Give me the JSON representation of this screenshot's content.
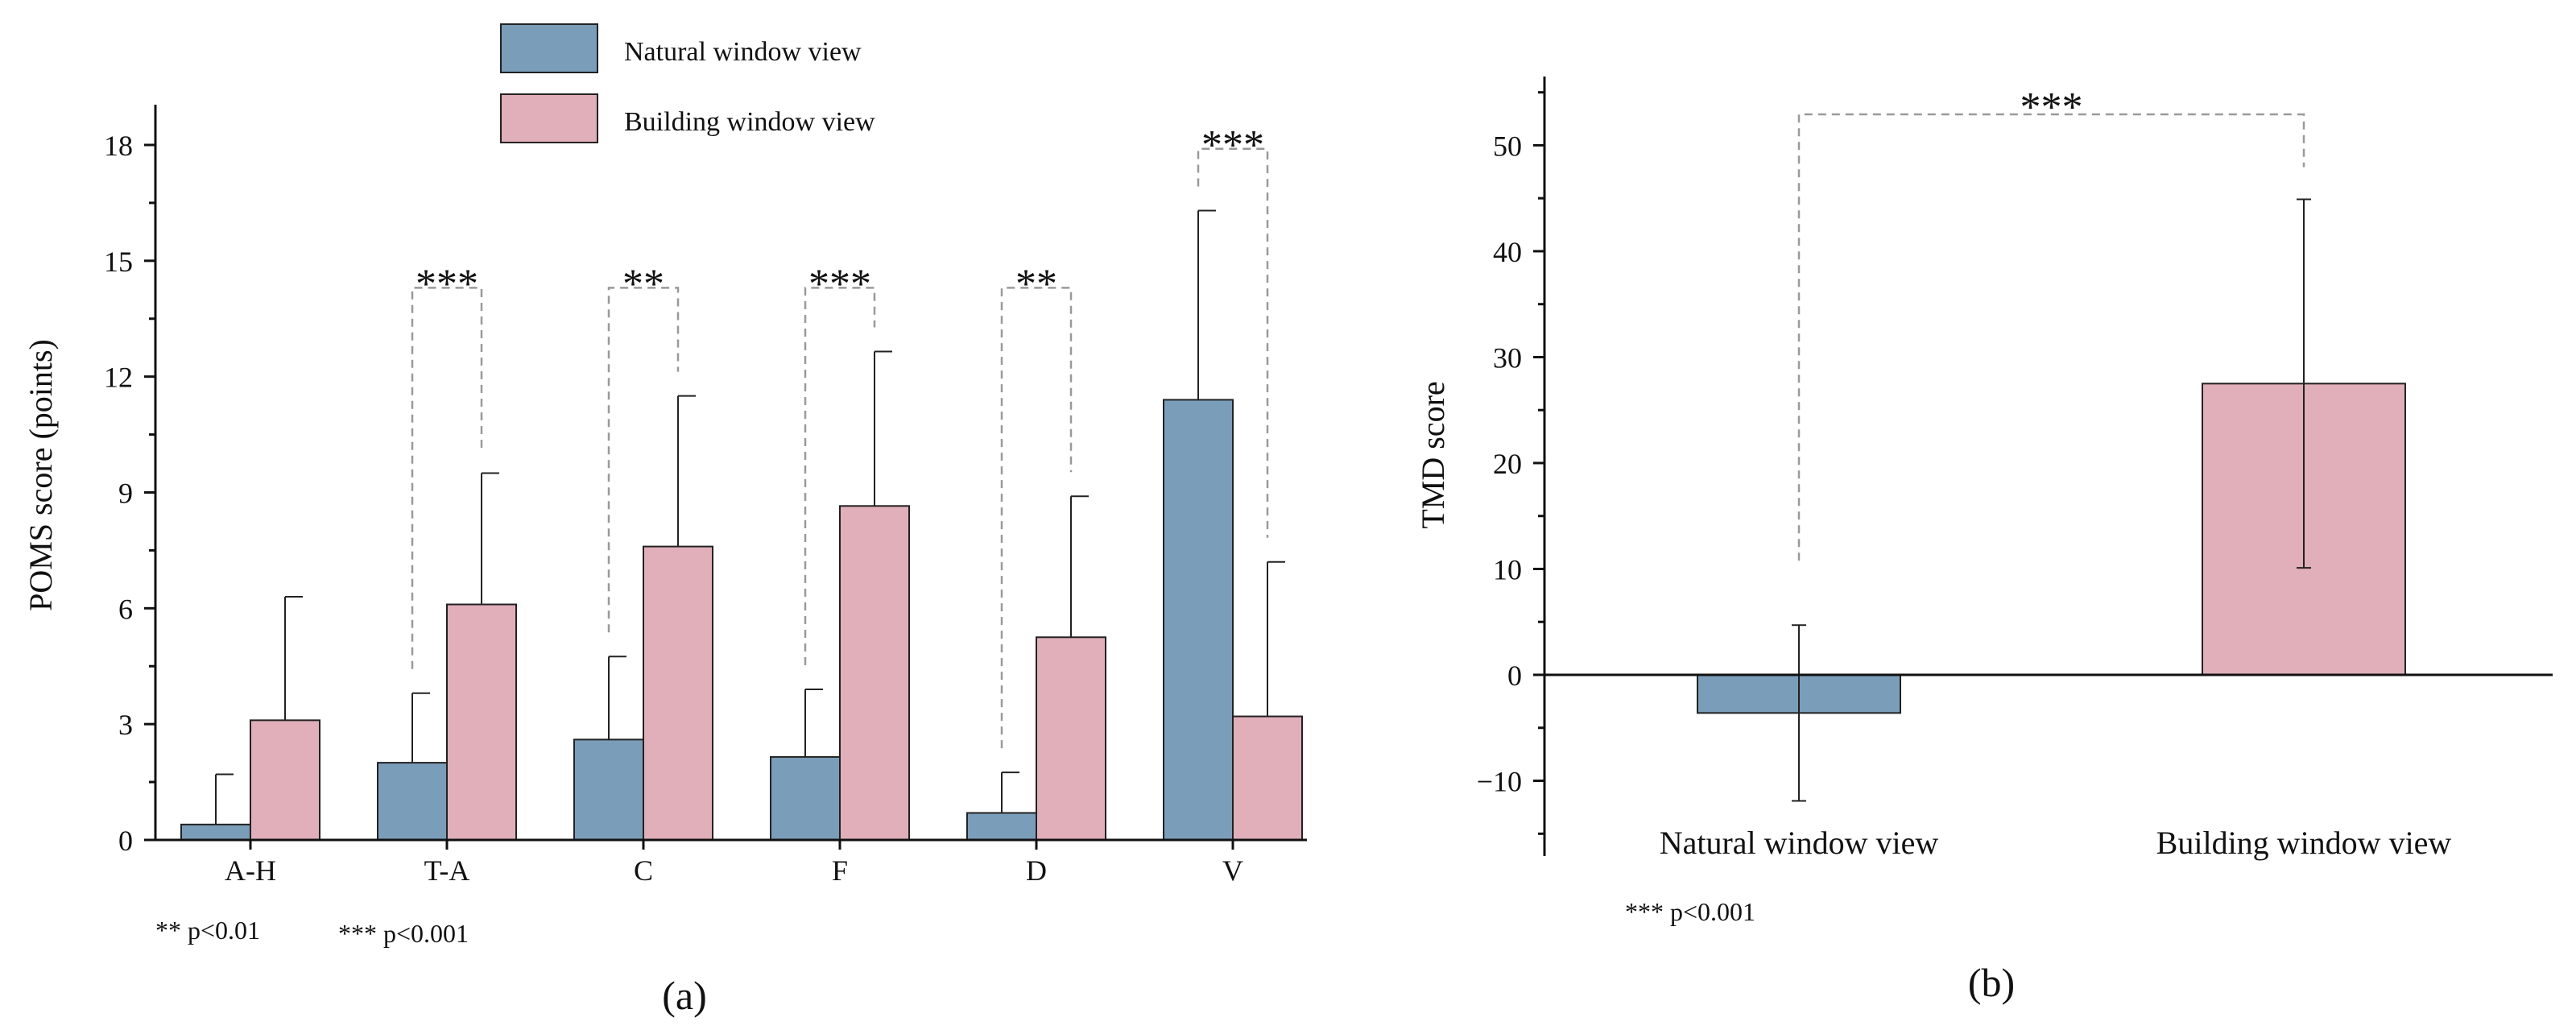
{
  "colors": {
    "natural": "#7a9db9",
    "building": "#e0afb9",
    "axis": "#111111",
    "bracket": "#999999"
  },
  "legend": {
    "natural": "Natural window view",
    "building": "Building window view"
  },
  "chart_data": [
    {
      "id": "a",
      "type": "bar",
      "panel_label": "(a)",
      "ylabel": "POMS score (points)",
      "xlabel": "",
      "ylim": [
        0,
        19
      ],
      "yticks": [
        0,
        3,
        6,
        9,
        12,
        15,
        18
      ],
      "categories": [
        "A-H",
        "T-A",
        "C",
        "F",
        "D",
        "V"
      ],
      "series": [
        {
          "name": "Natural window view",
          "key": "natural",
          "values": [
            0.4,
            2.0,
            2.6,
            2.15,
            0.7,
            11.4
          ],
          "errors": [
            1.3,
            1.8,
            2.15,
            1.75,
            1.05,
            4.9
          ]
        },
        {
          "name": "Building window view",
          "key": "building",
          "values": [
            3.1,
            6.1,
            7.6,
            8.65,
            5.25,
            3.2
          ],
          "errors": [
            3.2,
            3.4,
            3.9,
            4.0,
            3.65,
            4.0
          ]
        }
      ],
      "significance": [
        {
          "category": "T-A",
          "mark": "***"
        },
        {
          "category": "C",
          "mark": "**"
        },
        {
          "category": "F",
          "mark": "***"
        },
        {
          "category": "D",
          "mark": "**"
        },
        {
          "category": "V",
          "mark": "***"
        }
      ],
      "notes": [
        "** p<0.01",
        "*** p<0.001"
      ]
    },
    {
      "id": "b",
      "type": "bar",
      "panel_label": "(b)",
      "ylabel": "TMD score",
      "xlabel": "",
      "ylim": [
        -17,
        56
      ],
      "yticks": [
        -10,
        0,
        10,
        20,
        30,
        40,
        50
      ],
      "ytick_labels": [
        "−10",
        "0",
        "10",
        "20",
        "30",
        "40",
        "50"
      ],
      "categories": [
        "Natural window view",
        "Building window view"
      ],
      "series": [
        {
          "name": "TMD",
          "values": [
            -3.6,
            27.5
          ],
          "errors": [
            8.3,
            17.4
          ],
          "color_keys": [
            "natural",
            "building"
          ]
        }
      ],
      "significance": [
        {
          "mark": "***"
        }
      ],
      "notes": [
        "*** p<0.001"
      ]
    }
  ]
}
